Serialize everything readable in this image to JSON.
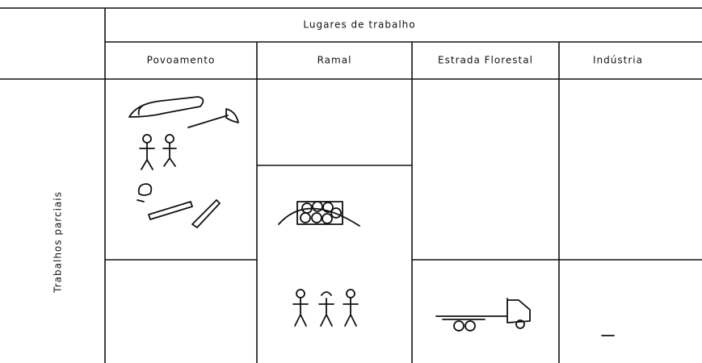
{
  "header": {
    "title": "Lugares de trabalho",
    "columns": [
      "Povoamento",
      "Ramal",
      "Estrada Florestal",
      "Indústria"
    ]
  },
  "row_header": "Trabalhos parciais"
}
